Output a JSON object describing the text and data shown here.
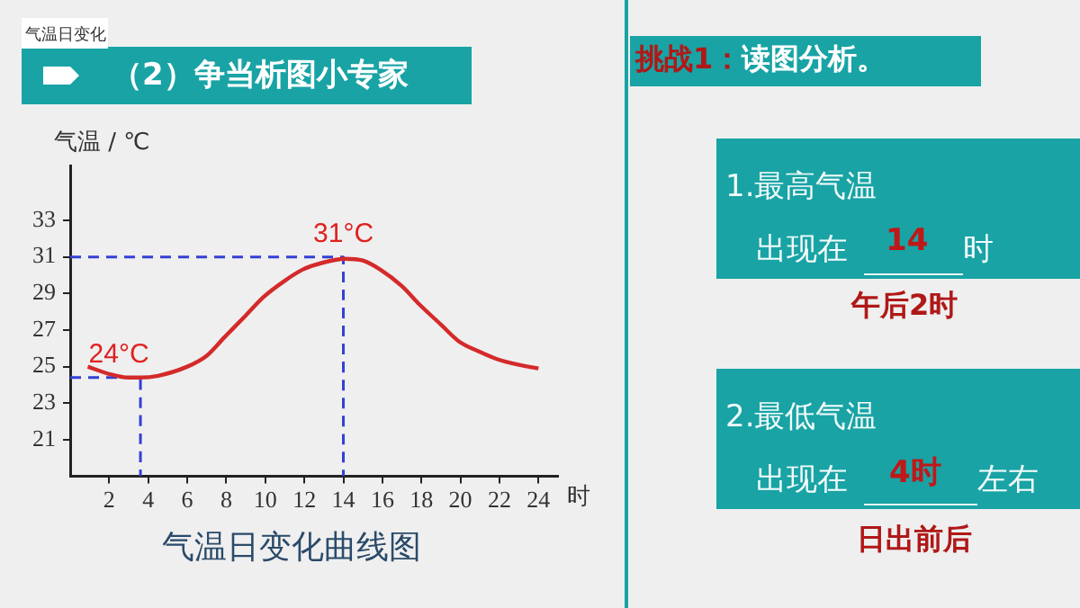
{
  "chart_data": {
    "type": "line",
    "title": "气温日变化曲线图",
    "ylabel": "气温 / ℃",
    "xlabel": "时",
    "xlim": [
      0,
      25
    ],
    "xticks": [
      2,
      4,
      6,
      8,
      10,
      12,
      14,
      16,
      18,
      20,
      22,
      24
    ],
    "ylim": [
      19,
      36
    ],
    "yticks": [
      21,
      23,
      25,
      27,
      29,
      31,
      33
    ],
    "grid": false,
    "legend": false,
    "marker": "none",
    "series": [
      {
        "color": "#d42a2a",
        "line_style": "solid",
        "x": [
          0.9,
          2,
          3,
          3.6,
          4.5,
          6,
          7,
          7.9,
          9,
          9.9,
          11,
          11.9,
          13,
          14.1,
          15,
          15.9,
          17,
          17.9,
          19,
          19.9,
          21,
          21.9,
          23,
          24
        ],
        "values": [
          25.0,
          24.6,
          24.4,
          24.4,
          24.5,
          25.0,
          25.6,
          26.6,
          27.8,
          28.8,
          29.7,
          30.3,
          30.7,
          30.9,
          30.8,
          30.3,
          29.4,
          28.4,
          27.3,
          26.4,
          25.8,
          25.4,
          25.1,
          24.9
        ]
      },
      {
        "color": "#3340d6",
        "line_style": "dashed",
        "x": [
          0,
          14,
          14
        ],
        "values": [
          31,
          31,
          19
        ]
      },
      {
        "color": "#3340d6",
        "line_style": "dashed",
        "x": [
          0,
          3.6,
          3.6
        ],
        "values": [
          24.4,
          24.4,
          19
        ]
      }
    ],
    "annotations": [
      {
        "text": "31°C",
        "x": 14,
        "y": 31
      },
      {
        "text": "24°C",
        "x": 3.6,
        "y": 24.4
      },
      "气温日变化",
      "（2）争当析图小专家",
      "挑战1：",
      "读图分析。",
      "1.最高气温",
      "出现在",
      "14",
      "时",
      "午后2时",
      "2.最低气温",
      "出现在",
      "4时",
      "左右",
      "日出前后"
    ]
  }
}
